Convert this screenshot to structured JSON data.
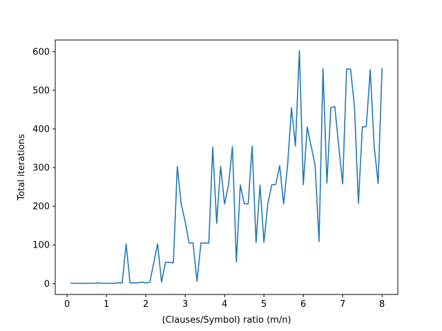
{
  "chart_data": {
    "type": "line",
    "title": "",
    "xlabel": "(Clauses/Symbol) ratio (m/n)",
    "ylabel": "Total iterations",
    "xlim": [
      -0.3,
      8.4
    ],
    "ylim": [
      -28,
      630
    ],
    "xticks": [
      0,
      1,
      2,
      3,
      4,
      5,
      6,
      7,
      8
    ],
    "yticks": [
      0,
      100,
      200,
      300,
      400,
      500,
      600
    ],
    "grid": false,
    "legend": "none",
    "line_color": "#1f77b4",
    "series": [
      {
        "x": [
          0.1,
          0.2,
          0.3,
          0.4,
          0.5,
          0.6,
          0.7,
          0.8,
          0.9,
          1.0,
          1.1,
          1.2,
          1.3,
          1.4,
          1.5,
          1.6,
          1.7,
          1.8,
          1.9,
          2.0,
          2.1,
          2.2,
          2.3,
          2.4,
          2.5,
          2.6,
          2.7,
          2.8,
          2.9,
          3.0,
          3.1,
          3.2,
          3.3,
          3.4,
          3.5,
          3.6,
          3.7,
          3.8,
          3.9,
          4.0,
          4.1,
          4.2,
          4.3,
          4.4,
          4.5,
          4.6,
          4.7,
          4.8,
          4.9,
          5.0,
          5.1,
          5.2,
          5.3,
          5.4,
          5.5,
          5.6,
          5.7,
          5.8,
          5.9,
          6.0,
          6.1,
          6.2,
          6.3,
          6.4,
          6.5,
          6.6,
          6.7,
          6.8,
          6.9,
          7.0,
          7.1,
          7.2,
          7.3,
          7.4,
          7.5,
          7.6,
          7.7,
          7.8,
          7.9,
          8.0
        ],
        "y": [
          1,
          1,
          1,
          1,
          1,
          1,
          1,
          2,
          1,
          1,
          1,
          1,
          2,
          2,
          103,
          2,
          2,
          2,
          4,
          2,
          3,
          53,
          103,
          4,
          55,
          55,
          54,
          303,
          205,
          160,
          105,
          105,
          6,
          105,
          105,
          105,
          353,
          156,
          303,
          206,
          255,
          354,
          56,
          255,
          207,
          206,
          355,
          106,
          255,
          107,
          207,
          256,
          256,
          305,
          206,
          305,
          455,
          356,
          603,
          256,
          405,
          355,
          306,
          109,
          556,
          260,
          455,
          458,
          355,
          258,
          555,
          555,
          457,
          208,
          405,
          406,
          553,
          355,
          259,
          556
        ]
      }
    ]
  }
}
